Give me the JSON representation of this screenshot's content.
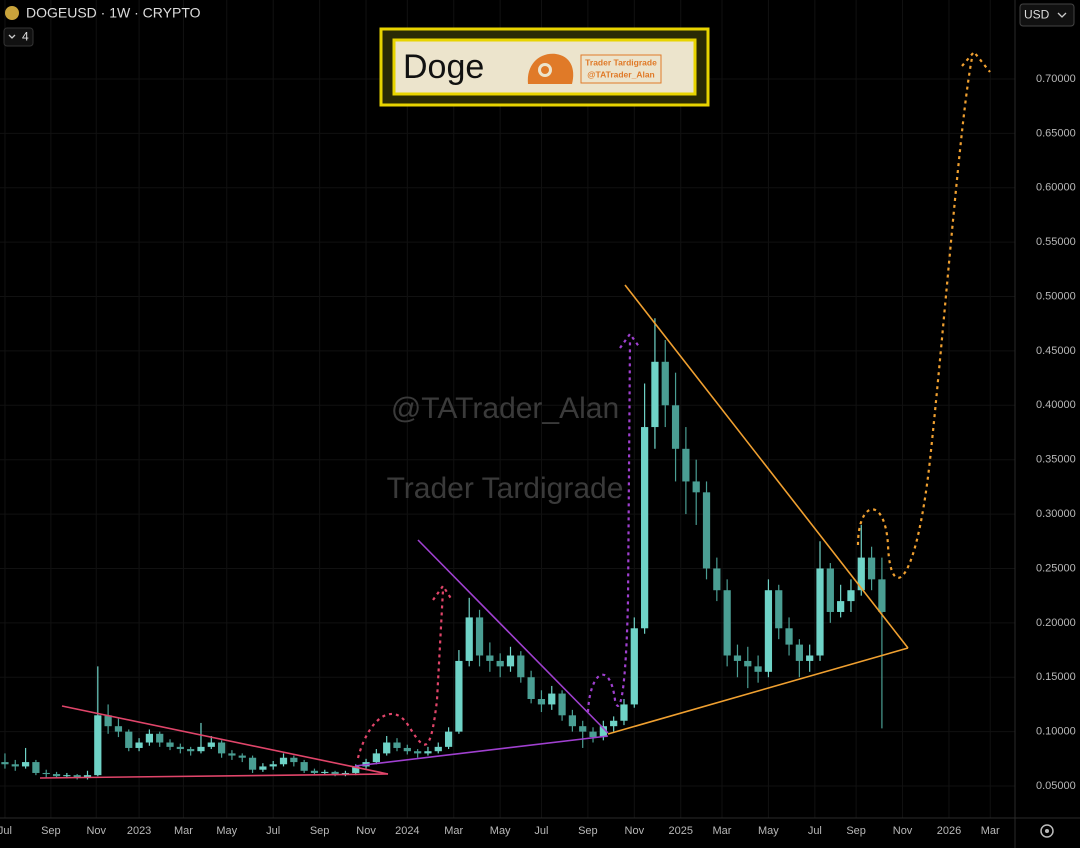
{
  "chart_data": {
    "type": "candlestick",
    "title": "DOGEUSD · 1W · CRYPTO",
    "collapsed_count": "4",
    "currency": "USD",
    "watermark": [
      "@TATrader_Alan",
      "Trader Tardigrade"
    ],
    "logo": {
      "title": "Doge",
      "lines": [
        "Trader Tardigrade",
        "@TATrader_Alan"
      ]
    },
    "up_color": "#6fd3c7",
    "down_color": "#4a9e93",
    "grid": true,
    "categories": [
      null,
      null,
      null,
      null,
      null,
      null,
      null,
      null,
      null,
      null,
      null,
      null,
      null,
      null,
      null,
      null,
      null,
      null,
      null,
      null,
      null,
      null,
      null,
      null,
      null,
      null,
      null,
      null,
      null,
      null,
      null,
      null,
      null,
      null,
      null,
      null,
      null,
      null,
      null,
      null,
      null,
      null,
      null,
      null,
      null,
      null,
      null,
      null,
      null,
      null,
      null,
      null,
      null,
      null,
      null,
      null,
      null,
      null,
      null,
      null,
      null,
      null,
      null,
      null,
      null,
      null,
      null,
      null,
      null,
      null,
      null,
      null,
      null,
      null,
      null,
      null,
      null,
      null,
      null,
      null,
      null,
      null,
      null,
      null,
      null,
      null
    ],
    "ohlc": [
      [
        0.072,
        0.08,
        0.066,
        0.07
      ],
      [
        0.07,
        0.074,
        0.064,
        0.068
      ],
      [
        0.068,
        0.085,
        0.066,
        0.072
      ],
      [
        0.072,
        0.074,
        0.06,
        0.062
      ],
      [
        0.062,
        0.065,
        0.058,
        0.061
      ],
      [
        0.061,
        0.063,
        0.057,
        0.059
      ],
      [
        0.059,
        0.062,
        0.057,
        0.06
      ],
      [
        0.06,
        0.061,
        0.056,
        0.058
      ],
      [
        0.058,
        0.064,
        0.056,
        0.06
      ],
      [
        0.06,
        0.16,
        0.059,
        0.115
      ],
      [
        0.115,
        0.125,
        0.098,
        0.105
      ],
      [
        0.105,
        0.112,
        0.095,
        0.1
      ],
      [
        0.1,
        0.102,
        0.082,
        0.085
      ],
      [
        0.085,
        0.094,
        0.082,
        0.09
      ],
      [
        0.09,
        0.102,
        0.087,
        0.098
      ],
      [
        0.098,
        0.1,
        0.086,
        0.09
      ],
      [
        0.09,
        0.093,
        0.083,
        0.086
      ],
      [
        0.086,
        0.089,
        0.08,
        0.084
      ],
      [
        0.084,
        0.086,
        0.078,
        0.082
      ],
      [
        0.082,
        0.108,
        0.08,
        0.086
      ],
      [
        0.086,
        0.096,
        0.084,
        0.09
      ],
      [
        0.09,
        0.092,
        0.076,
        0.08
      ],
      [
        0.08,
        0.083,
        0.074,
        0.078
      ],
      [
        0.078,
        0.08,
        0.072,
        0.076
      ],
      [
        0.076,
        0.078,
        0.062,
        0.065
      ],
      [
        0.065,
        0.071,
        0.063,
        0.068
      ],
      [
        0.068,
        0.073,
        0.065,
        0.07
      ],
      [
        0.07,
        0.08,
        0.068,
        0.076
      ],
      [
        0.076,
        0.078,
        0.068,
        0.072
      ],
      [
        0.072,
        0.074,
        0.062,
        0.064
      ],
      [
        0.064,
        0.066,
        0.06,
        0.062
      ],
      [
        0.062,
        0.065,
        0.06,
        0.063
      ],
      [
        0.063,
        0.064,
        0.059,
        0.061
      ],
      [
        0.061,
        0.064,
        0.059,
        0.062
      ],
      [
        0.062,
        0.07,
        0.06,
        0.068
      ],
      [
        0.068,
        0.075,
        0.066,
        0.072
      ],
      [
        0.072,
        0.084,
        0.07,
        0.08
      ],
      [
        0.08,
        0.096,
        0.078,
        0.09
      ],
      [
        0.09,
        0.094,
        0.082,
        0.085
      ],
      [
        0.085,
        0.088,
        0.079,
        0.082
      ],
      [
        0.082,
        0.084,
        0.076,
        0.08
      ],
      [
        0.08,
        0.086,
        0.078,
        0.082
      ],
      [
        0.082,
        0.09,
        0.08,
        0.086
      ],
      [
        0.086,
        0.104,
        0.084,
        0.1
      ],
      [
        0.1,
        0.175,
        0.098,
        0.165
      ],
      [
        0.165,
        0.223,
        0.16,
        0.205
      ],
      [
        0.205,
        0.212,
        0.16,
        0.17
      ],
      [
        0.17,
        0.182,
        0.155,
        0.165
      ],
      [
        0.165,
        0.172,
        0.15,
        0.16
      ],
      [
        0.16,
        0.178,
        0.155,
        0.17
      ],
      [
        0.17,
        0.174,
        0.145,
        0.15
      ],
      [
        0.15,
        0.156,
        0.126,
        0.13
      ],
      [
        0.13,
        0.138,
        0.118,
        0.125
      ],
      [
        0.125,
        0.142,
        0.12,
        0.135
      ],
      [
        0.135,
        0.138,
        0.11,
        0.115
      ],
      [
        0.115,
        0.12,
        0.1,
        0.105
      ],
      [
        0.105,
        0.11,
        0.085,
        0.1
      ],
      [
        0.1,
        0.104,
        0.09,
        0.095
      ],
      [
        0.095,
        0.11,
        0.092,
        0.105
      ],
      [
        0.105,
        0.114,
        0.1,
        0.11
      ],
      [
        0.11,
        0.13,
        0.106,
        0.125
      ],
      [
        0.125,
        0.205,
        0.122,
        0.195
      ],
      [
        0.195,
        0.42,
        0.19,
        0.38
      ],
      [
        0.38,
        0.48,
        0.36,
        0.44
      ],
      [
        0.44,
        0.46,
        0.38,
        0.4
      ],
      [
        0.4,
        0.43,
        0.33,
        0.36
      ],
      [
        0.36,
        0.38,
        0.3,
        0.33
      ],
      [
        0.33,
        0.35,
        0.29,
        0.32
      ],
      [
        0.32,
        0.33,
        0.24,
        0.25
      ],
      [
        0.25,
        0.26,
        0.22,
        0.23
      ],
      [
        0.23,
        0.24,
        0.16,
        0.17
      ],
      [
        0.17,
        0.18,
        0.15,
        0.165
      ],
      [
        0.165,
        0.178,
        0.14,
        0.16
      ],
      [
        0.16,
        0.17,
        0.145,
        0.155
      ],
      [
        0.155,
        0.24,
        0.15,
        0.23
      ],
      [
        0.23,
        0.235,
        0.185,
        0.195
      ],
      [
        0.195,
        0.205,
        0.17,
        0.18
      ],
      [
        0.18,
        0.185,
        0.15,
        0.165
      ],
      [
        0.165,
        0.18,
        0.155,
        0.17
      ],
      [
        0.17,
        0.275,
        0.165,
        0.25
      ],
      [
        0.25,
        0.255,
        0.2,
        0.21
      ],
      [
        0.21,
        0.235,
        0.205,
        0.22
      ],
      [
        0.22,
        0.24,
        0.21,
        0.23
      ],
      [
        0.23,
        0.29,
        0.225,
        0.26
      ],
      [
        0.26,
        0.27,
        0.23,
        0.24
      ],
      [
        0.24,
        0.26,
        0.103,
        0.21
      ]
    ],
    "xlim": [
      -0.48,
      97.9
    ],
    "xticks": [
      {
        "value": 0,
        "label": "Jul"
      },
      {
        "value": 4.45,
        "label": "Sep"
      },
      {
        "value": 8.85,
        "label": "Nov"
      },
      {
        "value": 13,
        "label": "2023"
      },
      {
        "value": 17.3,
        "label": "Mar"
      },
      {
        "value": 21.5,
        "label": "May"
      },
      {
        "value": 26,
        "label": "Jul"
      },
      {
        "value": 30.5,
        "label": "Sep"
      },
      {
        "value": 35,
        "label": "Nov"
      },
      {
        "value": 39,
        "label": "2024"
      },
      {
        "value": 43.5,
        "label": "Mar"
      },
      {
        "value": 48,
        "label": "May"
      },
      {
        "value": 52,
        "label": "Jul"
      },
      {
        "value": 56.5,
        "label": "Sep"
      },
      {
        "value": 61,
        "label": "Nov"
      },
      {
        "value": 65.5,
        "label": "2025"
      },
      {
        "value": 69.5,
        "label": "Mar"
      },
      {
        "value": 74,
        "label": "May"
      },
      {
        "value": 78.5,
        "label": "Jul"
      },
      {
        "value": 82.5,
        "label": "Sep"
      },
      {
        "value": 87,
        "label": "Nov"
      },
      {
        "value": 91.5,
        "label": "2026"
      },
      {
        "value": 95.5,
        "label": "Mar"
      }
    ],
    "ylim": [
      0.0206,
      0.7726
    ],
    "yticks": [
      {
        "value": 0.05,
        "label": "0.05000"
      },
      {
        "value": 0.1,
        "label": "0.10000"
      },
      {
        "value": 0.15,
        "label": "0.15000"
      },
      {
        "value": 0.2,
        "label": "0.20000"
      },
      {
        "value": 0.25,
        "label": "0.25000"
      },
      {
        "value": 0.3,
        "label": "0.30000"
      },
      {
        "value": 0.35,
        "label": "0.35000"
      },
      {
        "value": 0.4,
        "label": "0.40000"
      },
      {
        "value": 0.45,
        "label": "0.45000"
      },
      {
        "value": 0.5,
        "label": "0.50000"
      },
      {
        "value": 0.55,
        "label": "0.55000"
      },
      {
        "value": 0.6,
        "label": "0.60000"
      },
      {
        "value": 0.65,
        "label": "0.65000"
      },
      {
        "value": 0.7,
        "label": "0.70000"
      }
    ]
  }
}
